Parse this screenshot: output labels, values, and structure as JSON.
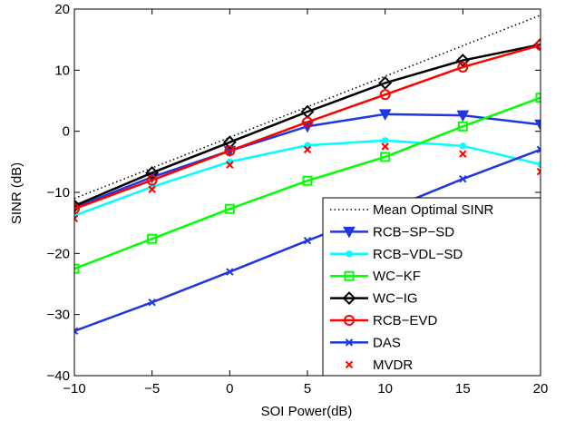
{
  "chart_data": {
    "type": "line",
    "title": "",
    "xlabel": "SOI Power(dB)",
    "ylabel": "SINR (dB)",
    "xlim": [
      -10,
      20
    ],
    "ylim": [
      -40,
      20
    ],
    "x": [
      -10,
      -5,
      0,
      5,
      10,
      15,
      20
    ],
    "xticks": [
      -10,
      -5,
      0,
      5,
      10,
      15,
      20
    ],
    "yticks": [
      -40,
      -30,
      -20,
      -10,
      0,
      10,
      20
    ],
    "xtick_labels": [
      "−10",
      "−5",
      "0",
      "5",
      "10",
      "15",
      "20"
    ],
    "ytick_labels": [
      "−40",
      "−30",
      "−20",
      "−10",
      "0",
      "10",
      "20"
    ],
    "grid": false,
    "legend_position": "bottom-right",
    "series": [
      {
        "name": "Mean Optimal SINR",
        "color": "#000000",
        "line": "dotted",
        "marker": "none",
        "x": [
          -10,
          20
        ],
        "values": [
          -11,
          19
        ]
      },
      {
        "name": "RCB−SP−SD",
        "color": "#1f36e0",
        "line": "solid",
        "marker": "triangle-down",
        "values": [
          -12.5,
          -7.5,
          -3.2,
          0.8,
          2.8,
          2.6,
          1.1
        ]
      },
      {
        "name": "RCB−VDL−SD",
        "color": "#00ffff",
        "line": "solid",
        "marker": "dot",
        "values": [
          -13.8,
          -9.1,
          -5.0,
          -2.3,
          -1.5,
          -2.4,
          -5.4
        ]
      },
      {
        "name": "WC−KF",
        "color": "#00ff00",
        "line": "solid",
        "marker": "square",
        "values": [
          -22.5,
          -17.6,
          -12.7,
          -8.1,
          -4.2,
          0.8,
          5.5
        ]
      },
      {
        "name": "WC−IG",
        "color": "#000000",
        "line": "solid",
        "marker": "diamond",
        "values": [
          -12.2,
          -6.8,
          -1.8,
          3.2,
          7.9,
          11.6,
          14.2
        ]
      },
      {
        "name": "RCB−EVD",
        "color": "#ff0000",
        "line": "solid",
        "marker": "circle",
        "values": [
          -12.7,
          -8.0,
          -3.2,
          1.5,
          6.0,
          10.5,
          14.1
        ]
      },
      {
        "name": "DAS",
        "color": "#1f36e0",
        "line": "solid",
        "marker": "x",
        "values": [
          -32.7,
          -28.0,
          -23.0,
          -17.9,
          -13.0,
          -7.8,
          -3.0
        ]
      },
      {
        "name": "MVDR",
        "color": "#ff0000",
        "line": "none",
        "marker": "x",
        "values": [
          -14.3,
          -9.5,
          -5.5,
          -3.0,
          -2.5,
          -3.7,
          -6.6
        ]
      }
    ]
  }
}
